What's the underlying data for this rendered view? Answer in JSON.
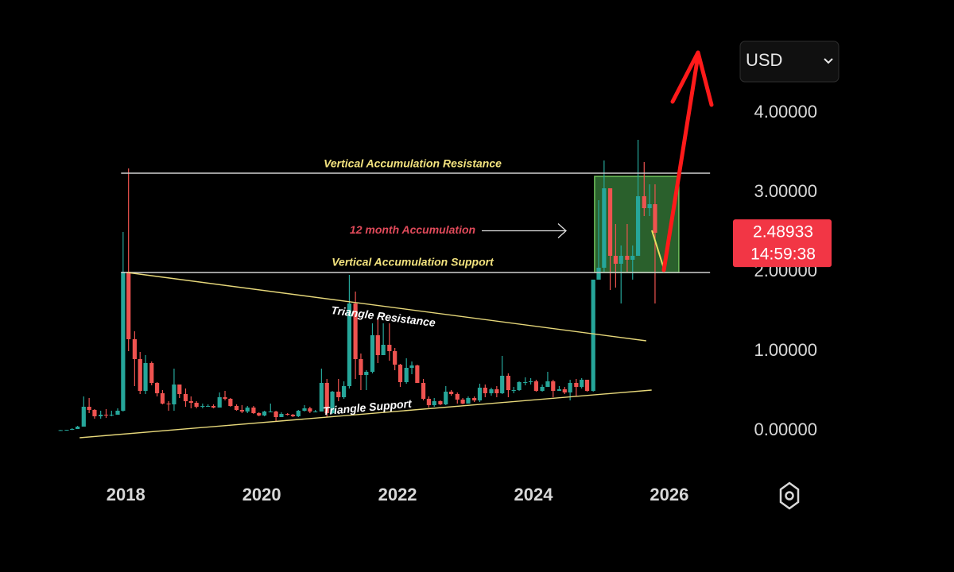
{
  "chart_data": {
    "type": "candlestick",
    "currency": "USD",
    "last_price": 2.48933,
    "last_price_label": "2.48933",
    "countdown": "14:59:38",
    "up_color": "#26a69a",
    "down_color": "#ef5350",
    "xlim": [
      2016.85,
      2026.68
    ],
    "ylim": [
      -0.4,
      5.0
    ],
    "xticks": [
      2018,
      2020,
      2022,
      2024,
      2026
    ],
    "yticks": [
      {
        "value": 0,
        "label": "0.00000"
      },
      {
        "value": 1,
        "label": "1.00000"
      },
      {
        "value": 2,
        "label": "2.00000"
      },
      {
        "value": 3,
        "label": "3.00000"
      },
      {
        "value": 4,
        "label": "4.00000"
      }
    ],
    "x": [
      2017.04,
      2017.13,
      2017.21,
      2017.29,
      2017.38,
      2017.46,
      2017.54,
      2017.63,
      2017.71,
      2017.79,
      2017.88,
      2017.96,
      2018.04,
      2018.13,
      2018.21,
      2018.29,
      2018.38,
      2018.46,
      2018.54,
      2018.63,
      2018.71,
      2018.79,
      2018.88,
      2018.96,
      2019.04,
      2019.13,
      2019.21,
      2019.29,
      2019.38,
      2019.46,
      2019.54,
      2019.63,
      2019.71,
      2019.79,
      2019.88,
      2019.96,
      2020.04,
      2020.13,
      2020.21,
      2020.29,
      2020.38,
      2020.46,
      2020.54,
      2020.63,
      2020.71,
      2020.79,
      2020.88,
      2020.96,
      2021.04,
      2021.13,
      2021.21,
      2021.29,
      2021.38,
      2021.46,
      2021.54,
      2021.63,
      2021.71,
      2021.79,
      2021.88,
      2021.96,
      2022.04,
      2022.13,
      2022.21,
      2022.29,
      2022.38,
      2022.46,
      2022.54,
      2022.63,
      2022.71,
      2022.79,
      2022.88,
      2022.96,
      2023.04,
      2023.13,
      2023.21,
      2023.29,
      2023.38,
      2023.46,
      2023.54,
      2023.63,
      2023.71,
      2023.79,
      2023.88,
      2023.96,
      2024.04,
      2024.13,
      2024.21,
      2024.29,
      2024.38,
      2024.46,
      2024.54,
      2024.63,
      2024.71,
      2024.79,
      2024.88,
      2024.96,
      2025.04,
      2025.13,
      2025.21,
      2025.29,
      2025.38,
      2025.46,
      2025.54,
      2025.63,
      2025.71,
      2025.79
    ],
    "open": [
      0.006,
      0.006,
      0.009,
      0.02,
      0.05,
      0.3,
      0.26,
      0.18,
      0.2,
      0.19,
      0.2,
      0.25,
      2.0,
      1.15,
      0.9,
      0.5,
      0.85,
      0.6,
      0.47,
      0.34,
      0.33,
      0.58,
      0.46,
      0.37,
      0.35,
      0.3,
      0.31,
      0.31,
      0.29,
      0.42,
      0.4,
      0.31,
      0.26,
      0.24,
      0.29,
      0.22,
      0.19,
      0.24,
      0.24,
      0.17,
      0.21,
      0.2,
      0.18,
      0.25,
      0.28,
      0.24,
      0.24,
      0.6,
      0.22,
      0.49,
      0.42,
      0.56,
      1.6,
      0.9,
      0.7,
      0.74,
      1.2,
      0.95,
      1.08,
      1.0,
      0.83,
      0.61,
      0.79,
      0.82,
      0.6,
      0.4,
      0.32,
      0.37,
      0.33,
      0.49,
      0.46,
      0.39,
      0.34,
      0.41,
      0.38,
      0.54,
      0.47,
      0.52,
      0.47,
      0.69,
      0.51,
      0.51,
      0.61,
      0.61,
      0.62,
      0.5,
      0.55,
      0.62,
      0.5,
      0.52,
      0.48,
      0.6,
      0.55,
      0.64,
      0.5,
      1.9,
      2.05,
      3.05,
      2.2,
      2.1,
      2.2,
      2.15,
      2.2,
      2.95,
      2.8,
      2.85
    ],
    "high": [
      0.008,
      0.01,
      0.03,
      0.06,
      0.43,
      0.41,
      0.27,
      0.25,
      0.27,
      0.25,
      0.28,
      2.5,
      3.3,
      1.25,
      0.99,
      0.95,
      0.87,
      0.61,
      0.51,
      0.37,
      0.78,
      0.58,
      0.53,
      0.43,
      0.37,
      0.34,
      0.33,
      0.33,
      0.48,
      0.5,
      0.41,
      0.33,
      0.32,
      0.31,
      0.31,
      0.23,
      0.25,
      0.34,
      0.25,
      0.23,
      0.22,
      0.21,
      0.26,
      0.32,
      0.3,
      0.26,
      0.78,
      0.65,
      0.5,
      0.65,
      0.62,
      1.96,
      1.75,
      0.97,
      0.76,
      1.35,
      1.41,
      1.35,
      1.35,
      1.04,
      0.84,
      0.91,
      0.87,
      0.83,
      0.65,
      0.43,
      0.41,
      0.38,
      0.56,
      0.51,
      0.48,
      0.41,
      0.43,
      0.43,
      0.59,
      0.58,
      0.54,
      0.56,
      0.94,
      0.72,
      0.55,
      0.62,
      0.67,
      0.66,
      0.64,
      0.58,
      0.74,
      0.64,
      0.56,
      0.55,
      0.64,
      0.65,
      0.66,
      0.64,
      1.9,
      2.9,
      3.4,
      3.05,
      2.6,
      2.33,
      2.6,
      2.33,
      3.66,
      3.38,
      3.1,
      3.1
    ],
    "low": [
      0.005,
      0.005,
      0.008,
      0.02,
      0.05,
      0.22,
      0.15,
      0.15,
      0.16,
      0.18,
      0.2,
      0.24,
      1.0,
      0.56,
      0.46,
      0.46,
      0.57,
      0.43,
      0.33,
      0.25,
      0.25,
      0.41,
      0.3,
      0.28,
      0.28,
      0.28,
      0.3,
      0.28,
      0.29,
      0.38,
      0.3,
      0.25,
      0.22,
      0.22,
      0.21,
      0.18,
      0.18,
      0.23,
      0.11,
      0.17,
      0.19,
      0.17,
      0.17,
      0.24,
      0.22,
      0.23,
      0.24,
      0.17,
      0.21,
      0.37,
      0.4,
      0.53,
      0.65,
      0.51,
      0.51,
      0.72,
      0.85,
      0.95,
      0.88,
      0.76,
      0.55,
      0.59,
      0.71,
      0.6,
      0.38,
      0.29,
      0.3,
      0.32,
      0.32,
      0.44,
      0.34,
      0.33,
      0.34,
      0.36,
      0.36,
      0.42,
      0.44,
      0.42,
      0.46,
      0.42,
      0.47,
      0.5,
      0.57,
      0.58,
      0.49,
      0.49,
      0.55,
      0.42,
      0.5,
      0.46,
      0.38,
      0.43,
      0.53,
      0.49,
      0.49,
      1.9,
      2.0,
      1.77,
      1.8,
      1.6,
      2.0,
      1.9,
      2.2,
      2.7,
      2.7,
      1.6
    ],
    "close": [
      0.006,
      0.009,
      0.02,
      0.05,
      0.3,
      0.26,
      0.18,
      0.2,
      0.19,
      0.2,
      0.25,
      2.0,
      1.15,
      0.9,
      0.5,
      0.85,
      0.6,
      0.47,
      0.34,
      0.33,
      0.58,
      0.46,
      0.37,
      0.35,
      0.3,
      0.31,
      0.31,
      0.29,
      0.42,
      0.4,
      0.31,
      0.26,
      0.24,
      0.29,
      0.22,
      0.19,
      0.24,
      0.24,
      0.17,
      0.21,
      0.2,
      0.18,
      0.25,
      0.28,
      0.24,
      0.24,
      0.6,
      0.22,
      0.49,
      0.42,
      0.56,
      1.6,
      0.9,
      0.7,
      0.74,
      1.2,
      0.95,
      1.08,
      1.0,
      0.83,
      0.61,
      0.79,
      0.82,
      0.6,
      0.4,
      0.32,
      0.37,
      0.33,
      0.49,
      0.46,
      0.39,
      0.34,
      0.41,
      0.38,
      0.54,
      0.47,
      0.52,
      0.47,
      0.69,
      0.51,
      0.51,
      0.61,
      0.61,
      0.62,
      0.5,
      0.55,
      0.62,
      0.5,
      0.52,
      0.48,
      0.6,
      0.55,
      0.64,
      0.5,
      1.9,
      2.05,
      3.05,
      2.2,
      2.1,
      2.2,
      2.15,
      2.2,
      2.95,
      2.8,
      2.85,
      2.49
    ],
    "lines": [
      {
        "label": "Vertical Accumulation Resistance",
        "color": "#f2e27e",
        "x": [
          2017.93,
          2026.6
        ],
        "y": [
          3.24,
          3.24
        ]
      },
      {
        "label": "Vertical Accumulation Support",
        "color": "#f2e27e",
        "x": [
          2017.93,
          2026.6
        ],
        "y": [
          1.99,
          1.99
        ]
      },
      {
        "label": "Triangle Resistance",
        "color": "#ffffff",
        "x": [
          2018.02,
          2025.66
        ],
        "y": [
          1.99,
          1.13
        ]
      },
      {
        "label": "Triangle Support",
        "color": "#ffffff",
        "x": [
          2017.32,
          2025.74
        ],
        "y": [
          -0.09,
          0.51
        ]
      }
    ],
    "box": {
      "label": "12 month Accumulation",
      "x": [
        2024.9,
        2026.14
      ],
      "y": [
        1.99,
        3.2
      ]
    }
  }
}
